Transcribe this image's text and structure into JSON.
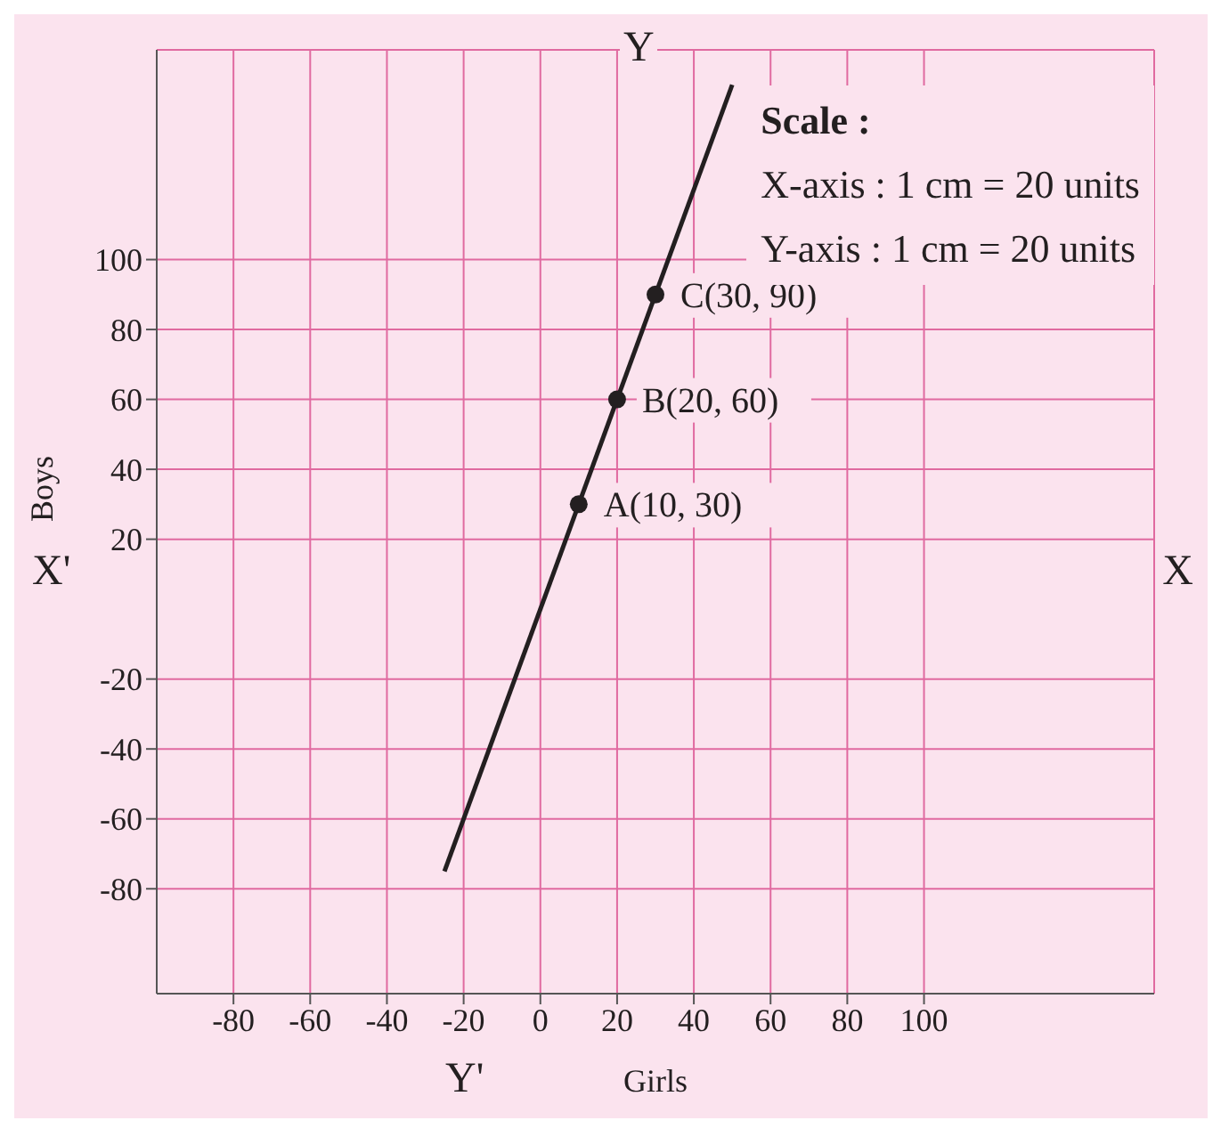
{
  "chart_data": {
    "type": "line",
    "xlabel": "Girls",
    "ylabel": "Boys",
    "xlim": [
      -100,
      160
    ],
    "ylim": [
      -110,
      160
    ],
    "xticks": [
      -80,
      -60,
      -40,
      -20,
      0,
      20,
      40,
      60,
      80,
      100
    ],
    "yticks": [
      -80,
      -60,
      -40,
      -20,
      20,
      40,
      60,
      80,
      100
    ],
    "grid": true,
    "series": [
      {
        "color": "#231f20",
        "x": [
          -25,
          50
        ],
        "values": [
          -75,
          150
        ],
        "marker": "none"
      },
      {
        "type": "scatter",
        "color": "#231f20",
        "x": [
          10,
          20,
          30
        ],
        "values": [
          30,
          60,
          90
        ],
        "marker": "circle"
      }
    ],
    "annotations": [
      "Scale :",
      "X-axis : 1 cm = 20 units",
      "Y-axis : 1 cm = 20 units",
      {
        "text": "A(10, 30)",
        "x": 10,
        "y": 30
      },
      {
        "text": "B(20, 60)",
        "x": 20,
        "y": 60
      },
      {
        "text": "C(30, 90)",
        "x": 30,
        "y": 90
      },
      "X'",
      "X",
      "Y",
      "Y'"
    ]
  }
}
